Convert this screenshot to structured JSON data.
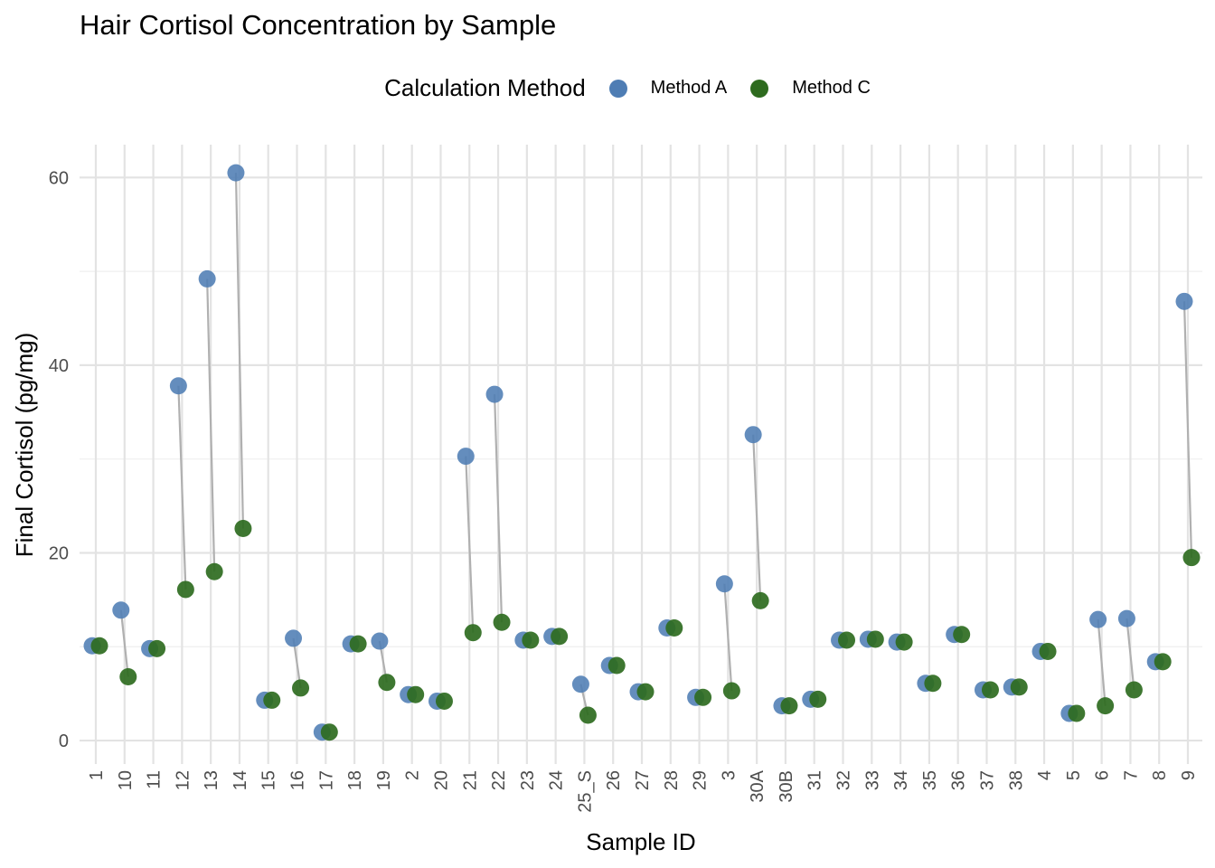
{
  "chart_data": {
    "type": "scatter",
    "title": "Hair Cortisol Concentration by Sample",
    "xlabel": "Sample ID",
    "ylabel": "Final Cortisol (pg/mg)",
    "ylim": [
      -2.5,
      63.5
    ],
    "yticks": [
      0,
      20,
      40,
      60
    ],
    "grid": true,
    "legend_title": "Calculation Method",
    "legend_placement": "top",
    "categories": [
      "1",
      "10",
      "11",
      "12",
      "13",
      "14",
      "15",
      "16",
      "17",
      "18",
      "19",
      "2",
      "20",
      "21",
      "22",
      "23",
      "24",
      "25_S",
      "26",
      "27",
      "28",
      "29",
      "3",
      "30A",
      "30B",
      "31",
      "32",
      "33",
      "34",
      "35",
      "36",
      "37",
      "38",
      "4",
      "5",
      "6",
      "7",
      "8",
      "9"
    ],
    "series": [
      {
        "name": "Method A",
        "color": "#4e7db4",
        "values": [
          10.1,
          13.9,
          9.8,
          37.8,
          49.2,
          60.5,
          4.3,
          10.9,
          0.9,
          10.3,
          10.6,
          4.9,
          4.2,
          30.3,
          36.9,
          10.7,
          11.1,
          6.0,
          8.0,
          5.2,
          12.0,
          4.6,
          16.7,
          32.6,
          3.7,
          4.4,
          10.7,
          10.8,
          10.5,
          6.1,
          11.3,
          5.4,
          5.7,
          9.5,
          2.9,
          12.9,
          13.0,
          8.4,
          46.8
        ]
      },
      {
        "name": "Method C",
        "color": "#2e6b1f",
        "values": [
          10.1,
          6.8,
          9.8,
          16.1,
          18.0,
          22.6,
          4.3,
          5.6,
          0.9,
          10.3,
          6.2,
          4.9,
          4.2,
          11.5,
          12.6,
          10.7,
          11.1,
          2.7,
          8.0,
          5.2,
          12.0,
          4.6,
          5.3,
          14.9,
          3.7,
          4.4,
          10.7,
          10.8,
          10.5,
          6.1,
          11.3,
          5.4,
          5.7,
          9.5,
          2.9,
          3.7,
          5.4,
          8.4,
          19.5
        ]
      }
    ]
  }
}
